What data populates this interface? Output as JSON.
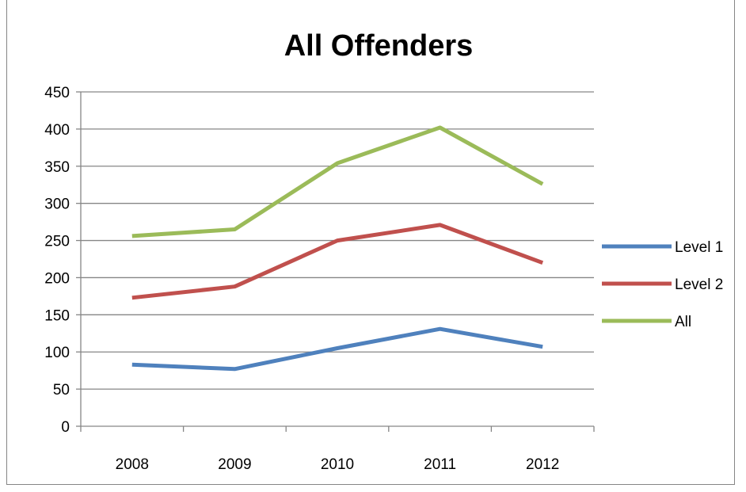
{
  "chart_data": {
    "type": "line",
    "title": "All Offenders",
    "categories": [
      "2008",
      "2009",
      "2010",
      "2011",
      "2012"
    ],
    "ylim": [
      0,
      450
    ],
    "yticks": [
      0,
      50,
      100,
      150,
      200,
      250,
      300,
      350,
      400,
      450
    ],
    "grid": true,
    "legend_position": "right",
    "series": [
      {
        "name": "Level 1",
        "color": "#4F81BD",
        "values": [
          83,
          77,
          105,
          131,
          107
        ]
      },
      {
        "name": "Level 2",
        "color": "#C0504D",
        "values": [
          173,
          188,
          250,
          271,
          220
        ]
      },
      {
        "name": "All",
        "color": "#9BBB59",
        "values": [
          256,
          265,
          354,
          402,
          326
        ]
      }
    ]
  }
}
